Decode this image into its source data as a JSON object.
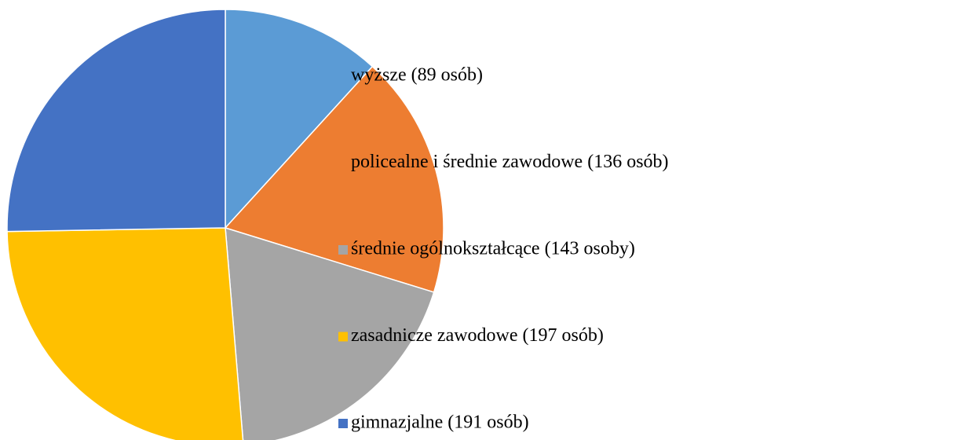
{
  "chart_data": {
    "type": "pie",
    "categories": [
      "wyższe (89 osób)",
      "policealne i średnie zawodowe (136 osób)",
      "średnie ogólnokształcące (143 osoby)",
      "zasadnicze zawodowe (197 osób)",
      "gimnazjalne (191 osób)"
    ],
    "values": [
      89,
      136,
      143,
      197,
      191
    ],
    "colors": [
      "#5b9bd5",
      "#ed7d31",
      "#a5a5a5",
      "#ffc000",
      "#4472c4"
    ],
    "legend": "right"
  }
}
